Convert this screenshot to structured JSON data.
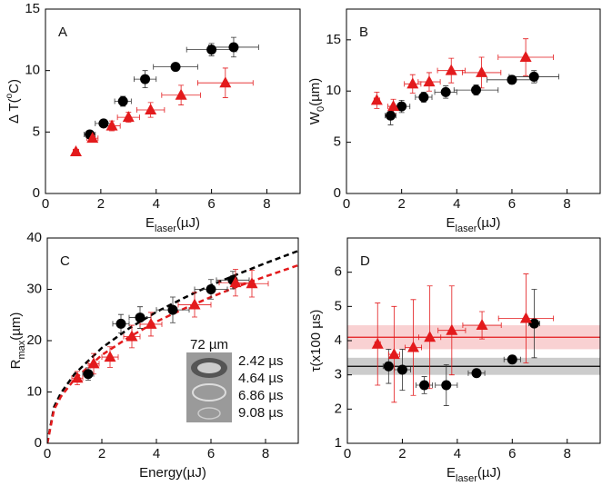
{
  "chart_data": [
    {
      "type": "scatter",
      "label": "A",
      "ylabel": [
        {
          "text": "Δ T("
        },
        {
          "text": "o",
          "shift": "super"
        },
        {
          "text": "C)"
        }
      ],
      "xlabel": [
        {
          "text": "E"
        },
        {
          "text": "laser",
          "shift": "sub"
        },
        {
          "text": "(µJ)"
        }
      ],
      "xlim": [
        0,
        9.2
      ],
      "xticks": [
        0,
        2,
        4,
        6,
        8
      ],
      "ylim": [
        0,
        15
      ],
      "yticks": [
        0,
        5,
        10,
        15
      ],
      "series": [
        {
          "color": "#000000",
          "marker": "circle",
          "x": [
            1.6,
            2.1,
            2.8,
            3.6,
            4.7,
            6.0,
            6.8
          ],
          "values": [
            4.8,
            5.7,
            7.5,
            9.3,
            10.3,
            11.7,
            11.9
          ],
          "xerr": [
            0.2,
            0.3,
            0.3,
            0.4,
            0.8,
            0.9,
            0.9
          ],
          "yerr": [
            0.3,
            0.3,
            0.4,
            0.7,
            0.3,
            0.5,
            0.8
          ]
        },
        {
          "color": "#e31a1c",
          "marker": "triangle",
          "x": [
            1.1,
            1.7,
            2.4,
            3.0,
            3.8,
            4.9,
            6.5
          ],
          "values": [
            3.4,
            4.5,
            5.5,
            6.2,
            6.8,
            8.0,
            9.0
          ],
          "xerr": [
            0.1,
            0.2,
            0.3,
            0.4,
            0.5,
            0.7,
            1.0
          ],
          "yerr": [
            0.2,
            0.3,
            0.4,
            0.4,
            0.6,
            0.8,
            1.2
          ]
        }
      ]
    },
    {
      "type": "scatter",
      "label": "B",
      "ylabel": [
        {
          "text": "W"
        },
        {
          "text": "0",
          "shift": "sub"
        },
        {
          "text": "(µm)"
        }
      ],
      "xlabel": [
        {
          "text": "E"
        },
        {
          "text": "laser",
          "shift": "sub"
        },
        {
          "text": "(µJ)"
        }
      ],
      "xlim": [
        0,
        9.2
      ],
      "xticks": [
        0,
        2,
        4,
        6,
        8
      ],
      "ylim": [
        0,
        18
      ],
      "yticks": [
        0,
        5,
        10,
        15
      ],
      "series": [
        {
          "color": "#000000",
          "marker": "circle",
          "x": [
            1.6,
            2.0,
            2.8,
            3.6,
            4.7,
            6.0,
            6.8
          ],
          "values": [
            7.6,
            8.5,
            9.4,
            9.9,
            10.1,
            11.1,
            11.4
          ],
          "xerr": [
            0.2,
            0.3,
            0.3,
            0.4,
            0.8,
            0.9,
            0.9
          ],
          "yerr": [
            0.9,
            0.6,
            0.5,
            0.6,
            0.5,
            0.4,
            0.6
          ]
        },
        {
          "color": "#e31a1c",
          "marker": "triangle",
          "x": [
            1.1,
            1.7,
            2.4,
            3.0,
            3.8,
            4.9,
            6.5
          ],
          "values": [
            9.1,
            8.5,
            10.7,
            10.9,
            12.0,
            11.8,
            13.3
          ],
          "xerr": [
            0.1,
            0.2,
            0.3,
            0.4,
            0.5,
            0.7,
            1.0
          ],
          "yerr": [
            0.8,
            0.7,
            0.9,
            0.9,
            1.2,
            1.5,
            1.8
          ]
        }
      ]
    },
    {
      "type": "scatter",
      "label": "C",
      "ylabel": [
        {
          "text": "R"
        },
        {
          "text": "max",
          "shift": "sub"
        },
        {
          "text": "(µm)"
        }
      ],
      "xlabel": [
        {
          "text": "Energy(µJ)"
        }
      ],
      "xlim": [
        0,
        9.2
      ],
      "xticks": [
        0,
        2,
        4,
        6,
        8
      ],
      "ylim": [
        0,
        40
      ],
      "yticks": [
        0,
        10,
        20,
        30,
        40
      ],
      "curves": [
        {
          "color": "#000000",
          "x": [
            0,
            0.25,
            0.5,
            1,
            2,
            3,
            4,
            5,
            6,
            7,
            8,
            9.2
          ],
          "values": [
            0,
            7.1,
            9.8,
            13.5,
            18.6,
            22.4,
            25.6,
            28.3,
            30.8,
            33.0,
            35.1,
            37.5
          ]
        },
        {
          "color": "#e31a1c",
          "x": [
            0,
            0.25,
            0.5,
            1,
            2,
            3,
            4,
            5,
            6,
            7,
            8,
            9.2
          ],
          "values": [
            0,
            6.6,
            9.1,
            12.5,
            17.2,
            20.7,
            23.7,
            26.2,
            28.5,
            30.6,
            32.5,
            34.7
          ]
        }
      ],
      "series": [
        {
          "color": "#000000",
          "marker": "circle",
          "x": [
            1.5,
            2.7,
            3.4,
            4.6,
            6.0,
            6.8
          ],
          "values": [
            13.5,
            23.3,
            24.5,
            26,
            30,
            31.8
          ],
          "xerr": [
            0.2,
            0.3,
            0.4,
            0.6,
            0.6,
            0.6
          ],
          "yerr": [
            1.2,
            1.8,
            2.1,
            2.5,
            1.9,
            1.7
          ]
        },
        {
          "color": "#e31a1c",
          "marker": "triangle",
          "x": [
            1.1,
            1.7,
            2.3,
            3.1,
            3.8,
            5.4,
            6.9,
            7.5
          ],
          "values": [
            12.7,
            15.5,
            16.8,
            20.8,
            23.2,
            27,
            31.3,
            31.1
          ],
          "xerr": [
            0.2,
            0.2,
            0.3,
            0.3,
            0.4,
            0.6,
            0.6,
            0.6
          ],
          "yerr": [
            1.3,
            2,
            2,
            2.2,
            2.3,
            2.4,
            2.6,
            2.6
          ]
        }
      ],
      "inset": {
        "scale": "72 µm",
        "times": [
          "2.42 µs",
          "4.64 µs",
          "6.86 µs",
          "9.08 µs"
        ]
      }
    },
    {
      "type": "scatter",
      "label": "D",
      "ylabel": [
        {
          "text": "τ(x100 µs)"
        }
      ],
      "xlabel": [
        {
          "text": "E"
        },
        {
          "text": "laser",
          "shift": "sub"
        },
        {
          "text": "(µJ)"
        }
      ],
      "xlim": [
        0,
        9.2
      ],
      "xticks": [
        0,
        2,
        4,
        6,
        8
      ],
      "ylim": [
        1,
        7
      ],
      "yticks": [
        1,
        2,
        3,
        4,
        5,
        6
      ],
      "bands": [
        {
          "color": "#e31a1c",
          "value": 4.1,
          "low": 3.75,
          "high": 4.45
        },
        {
          "color": "#000000",
          "value": 3.25,
          "low": 3.0,
          "high": 3.5
        }
      ],
      "series": [
        {
          "color": "#000000",
          "marker": "circle",
          "x": [
            1.5,
            2.0,
            2.8,
            3.6,
            4.7,
            6.0,
            6.8
          ],
          "values": [
            3.25,
            3.15,
            2.7,
            2.7,
            3.05,
            3.45,
            4.5
          ],
          "xerr": [
            0.2,
            0.3,
            0.3,
            0.4,
            0.3,
            0.3,
            0.2
          ],
          "yerr": [
            0.5,
            0.6,
            0.25,
            0.6,
            0.1,
            0.1,
            1.0
          ]
        },
        {
          "color": "#e31a1c",
          "marker": "triangle",
          "x": [
            1.1,
            1.7,
            2.4,
            3.0,
            3.8,
            4.9,
            6.5
          ],
          "values": [
            3.9,
            3.6,
            3.8,
            4.1,
            4.3,
            4.45,
            4.65
          ],
          "xerr": [
            0.1,
            0.2,
            0.3,
            0.4,
            0.5,
            0.7,
            1.0
          ],
          "yerr": [
            1.2,
            1.4,
            1.4,
            1.5,
            1.3,
            0.4,
            1.3
          ]
        }
      ]
    }
  ]
}
